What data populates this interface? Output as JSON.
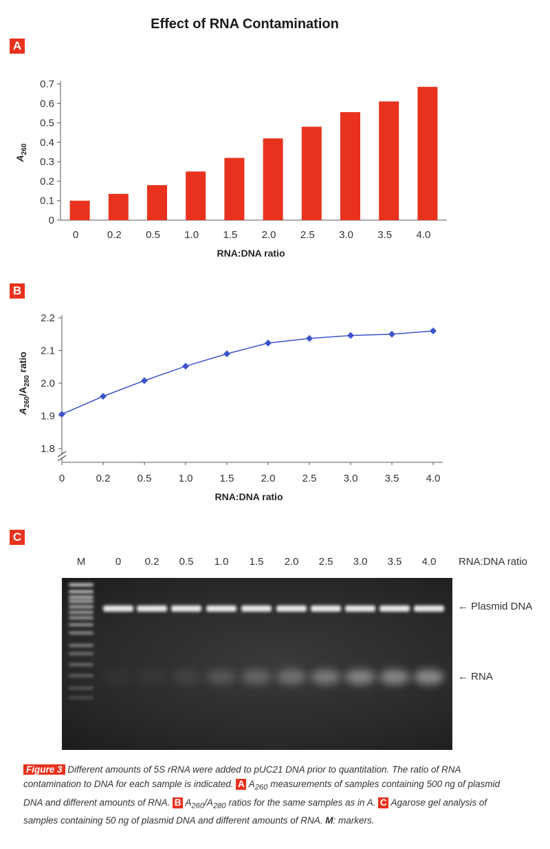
{
  "title": "Effect of RNA Contamination",
  "chart_data": [
    {
      "panel": "A",
      "type": "bar",
      "categories": [
        "0",
        "0.2",
        "0.5",
        "1.0",
        "1.5",
        "2.0",
        "2.5",
        "3.0",
        "3.5",
        "4.0"
      ],
      "values": [
        0.1,
        0.135,
        0.18,
        0.25,
        0.32,
        0.42,
        0.48,
        0.555,
        0.61,
        0.685
      ],
      "xlabel": "RNA:DNA ratio",
      "ylabel": "A",
      "ylabel_sub": "260",
      "ylim": [
        0,
        0.7
      ],
      "yticks": [
        "0",
        "0.1",
        "0.2",
        "0.3",
        "0.4",
        "0.5",
        "0.6",
        "0.7"
      ],
      "bar_color": "#e8321e",
      "grid": false
    },
    {
      "panel": "B",
      "type": "line",
      "categories": [
        "0",
        "0.2",
        "0.5",
        "1.0",
        "1.5",
        "2.0",
        "2.5",
        "3.0",
        "3.5",
        "4.0"
      ],
      "values": [
        1.905,
        1.96,
        2.008,
        2.052,
        2.09,
        2.123,
        2.137,
        2.146,
        2.15,
        2.16
      ],
      "xlabel": "RNA:DNA ratio",
      "ylabel_parts": [
        "A",
        "260",
        "/A",
        "280",
        " ratio"
      ],
      "ylim": [
        1.8,
        2.2
      ],
      "yticks": [
        "1.8",
        "1.9",
        "2.0",
        "2.1",
        "2.2"
      ],
      "line_color": "#3b55c9",
      "grid": false
    }
  ],
  "gel": {
    "panel": "C",
    "lanes": [
      "M",
      "0",
      "0.2",
      "0.5",
      "1.0",
      "1.5",
      "2.0",
      "2.5",
      "3.0",
      "3.5",
      "4.0"
    ],
    "ratio_label": "RNA:DNA ratio",
    "plasmid_label": "← Plasmid DNA",
    "rna_label": "← RNA",
    "rna_intensity": [
      0,
      0.05,
      0.08,
      0.14,
      0.3,
      0.42,
      0.52,
      0.62,
      0.72,
      0.76,
      0.82
    ]
  },
  "caption": {
    "figure_tag": "Figure 3",
    "intro": " Different amounts of 5S rRNA were added to pUC21 DNA prior to quantitation. The ratio of RNA contamination to DNA for each sample is indicated. ",
    "badge_a": "A",
    "part_a_pre": " A",
    "part_a_sub": "260",
    "part_a_text": " measurements of samples containing 500 ng of plasmid DNA and different amounts of RNA. ",
    "badge_b": "B",
    "part_b_pre": " A",
    "part_b_sub1": "260",
    "part_b_mid": "/A",
    "part_b_sub2": "280",
    "part_b_text": " ratios for the same samples as in A. ",
    "badge_c": "C",
    "part_c_text": " Agarose gel analysis of samples containing 50 ng of plasmid DNA and different amounts of RNA. ",
    "markers_key": "M",
    "markers_text": ": markers."
  }
}
